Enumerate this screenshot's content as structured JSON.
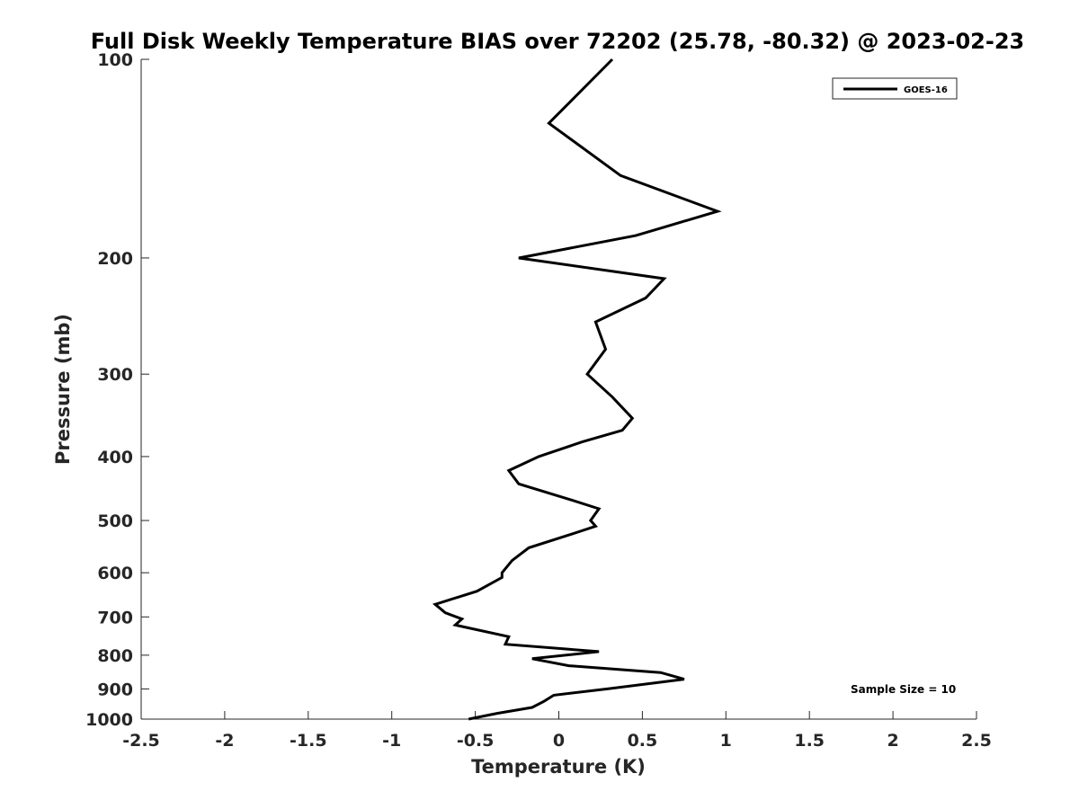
{
  "chart_data": {
    "type": "line",
    "title": "Full Disk Weekly Temperature BIAS over 72202 (25.78, -80.32) @ 2023-02-23",
    "xlabel": "Temperature (K)",
    "ylabel": "Pressure (mb)",
    "xlim": [
      -2.5,
      2.5
    ],
    "ylim": [
      1000,
      100
    ],
    "y_scale": "log",
    "y_reversed": true,
    "x_ticks": [
      -2.5,
      -2,
      -1.5,
      -1,
      -0.5,
      0,
      0.5,
      1,
      1.5,
      2,
      2.5
    ],
    "x_tick_labels": [
      "-2.5",
      "-2",
      "-1.5",
      "-1",
      "-0.5",
      "0",
      "0.5",
      "1",
      "1.5",
      "2",
      "2.5"
    ],
    "y_ticks": [
      100,
      200,
      300,
      400,
      500,
      600,
      700,
      800,
      900,
      1000
    ],
    "y_tick_labels": [
      "100",
      "200",
      "300",
      "400",
      "500",
      "600",
      "700",
      "800",
      "900",
      "1000"
    ],
    "grid": false,
    "legend_position": "top-right",
    "series": [
      {
        "name": "GOES-16",
        "color": "#000000",
        "points": [
          {
            "x": 0.32,
            "y": 100
          },
          {
            "x": -0.06,
            "y": 125
          },
          {
            "x": 0.37,
            "y": 150
          },
          {
            "x": 0.95,
            "y": 170
          },
          {
            "x": 0.46,
            "y": 185
          },
          {
            "x": -0.24,
            "y": 200
          },
          {
            "x": 0.63,
            "y": 215
          },
          {
            "x": 0.52,
            "y": 230
          },
          {
            "x": 0.22,
            "y": 250
          },
          {
            "x": 0.28,
            "y": 275
          },
          {
            "x": 0.17,
            "y": 300
          },
          {
            "x": 0.32,
            "y": 325
          },
          {
            "x": 0.44,
            "y": 350
          },
          {
            "x": 0.38,
            "y": 365
          },
          {
            "x": 0.14,
            "y": 380
          },
          {
            "x": -0.12,
            "y": 400
          },
          {
            "x": -0.3,
            "y": 420
          },
          {
            "x": -0.24,
            "y": 440
          },
          {
            "x": 0.07,
            "y": 465
          },
          {
            "x": 0.24,
            "y": 480
          },
          {
            "x": 0.19,
            "y": 500
          },
          {
            "x": 0.22,
            "y": 510
          },
          {
            "x": 0.07,
            "y": 525
          },
          {
            "x": -0.18,
            "y": 550
          },
          {
            "x": -0.28,
            "y": 575
          },
          {
            "x": -0.34,
            "y": 600
          },
          {
            "x": -0.34,
            "y": 610
          },
          {
            "x": -0.49,
            "y": 640
          },
          {
            "x": -0.74,
            "y": 670
          },
          {
            "x": -0.68,
            "y": 690
          },
          {
            "x": -0.58,
            "y": 705
          },
          {
            "x": -0.62,
            "y": 720
          },
          {
            "x": -0.3,
            "y": 750
          },
          {
            "x": -0.32,
            "y": 770
          },
          {
            "x": 0.24,
            "y": 790
          },
          {
            "x": -0.16,
            "y": 810
          },
          {
            "x": 0.06,
            "y": 830
          },
          {
            "x": 0.61,
            "y": 850
          },
          {
            "x": 0.75,
            "y": 870
          },
          {
            "x": 0.29,
            "y": 900
          },
          {
            "x": -0.03,
            "y": 920
          },
          {
            "x": -0.09,
            "y": 940
          },
          {
            "x": -0.16,
            "y": 960
          },
          {
            "x": -0.37,
            "y": 980
          },
          {
            "x": -0.54,
            "y": 1000
          }
        ]
      }
    ],
    "annotations": [
      "Sample Size = 10"
    ]
  }
}
